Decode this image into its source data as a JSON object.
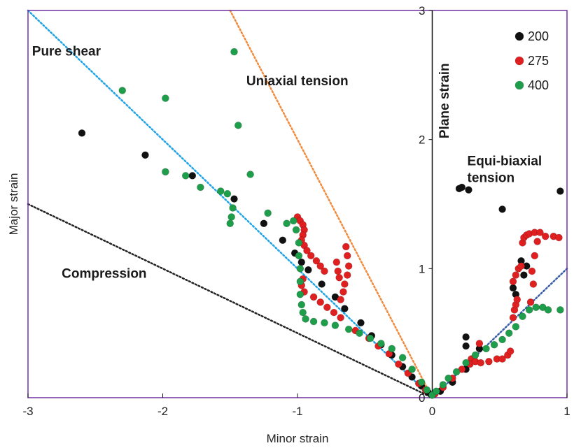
{
  "chart_data": {
    "type": "scatter",
    "title": "",
    "xlabel": "Minor strain",
    "ylabel": "Major strain",
    "xlim": [
      -3,
      1
    ],
    "ylim": [
      0,
      3
    ],
    "xticks": [
      -3,
      -2,
      -1,
      0,
      1
    ],
    "yticks": [
      0,
      1,
      2,
      3
    ],
    "tick_labels_x": [
      "-3",
      "-2",
      "-1",
      "0",
      "1"
    ],
    "tick_labels_y": [
      "0",
      "1",
      "2",
      "3"
    ],
    "grid": false,
    "legend_position": "top-right",
    "frame_color": "#7030a0",
    "reference_lines": [
      {
        "name": "Pure shear",
        "color": "#1fa3e8",
        "points": [
          [
            -3,
            3
          ],
          [
            0,
            0
          ]
        ]
      },
      {
        "name": "Uniaxial tension",
        "color": "#f28a3c",
        "points": [
          [
            -1.5,
            3
          ],
          [
            0,
            0
          ]
        ]
      },
      {
        "name": "Compression",
        "color": "#222222",
        "points": [
          [
            -3,
            1.5
          ],
          [
            0,
            0
          ]
        ]
      },
      {
        "name": "Equi-biaxial tension",
        "color": "#3a5fa8",
        "points": [
          [
            0,
            0
          ],
          [
            1,
            1
          ]
        ]
      }
    ],
    "annotations": [
      {
        "text": "Pure shear",
        "x": -2.97,
        "y": 2.65
      },
      {
        "text": "Uniaxial tension",
        "x": -1.38,
        "y": 2.42
      },
      {
        "text": "Compression",
        "x": -2.75,
        "y": 0.93
      },
      {
        "text": "Equi-biaxial",
        "x": 0.26,
        "y": 1.8
      },
      {
        "text": "tension",
        "x": 0.26,
        "y": 1.67
      }
    ],
    "vertical_annotation": {
      "text": "Plane strain",
      "x": 0.07,
      "y": 2.3
    },
    "series": [
      {
        "name": "200",
        "color": "#111111",
        "points": [
          [
            -2.6,
            2.05
          ],
          [
            -2.13,
            1.88
          ],
          [
            -1.78,
            1.72
          ],
          [
            -1.47,
            1.54
          ],
          [
            -1.25,
            1.35
          ],
          [
            -1.11,
            1.22
          ],
          [
            -1.02,
            1.12
          ],
          [
            -0.97,
            1.05
          ],
          [
            -0.92,
            0.99
          ],
          [
            -0.82,
            0.88
          ],
          [
            -0.72,
            0.78
          ],
          [
            -0.65,
            0.69
          ],
          [
            -0.53,
            0.58
          ],
          [
            -0.45,
            0.48
          ],
          [
            -0.38,
            0.41
          ],
          [
            -0.3,
            0.33
          ],
          [
            -0.22,
            0.24
          ],
          [
            -0.15,
            0.16
          ],
          [
            -0.08,
            0.09
          ],
          [
            -0.03,
            0.04
          ],
          [
            0,
            0.02
          ],
          [
            0.06,
            0.05
          ],
          [
            0.15,
            0.12
          ],
          [
            0.25,
            0.22
          ],
          [
            0.3,
            0.3
          ],
          [
            0.35,
            0.38
          ],
          [
            0.25,
            0.4
          ],
          [
            0.25,
            0.47
          ],
          [
            0.22,
            1.63
          ],
          [
            0.2,
            1.62
          ],
          [
            0.27,
            1.61
          ],
          [
            0.52,
            1.46
          ],
          [
            0.95,
            1.6
          ],
          [
            0.66,
            1.06
          ],
          [
            0.7,
            1.02
          ],
          [
            0.6,
            0.85
          ],
          [
            0.62,
            0.8
          ],
          [
            0.68,
            0.95
          ]
        ]
      },
      {
        "name": "275",
        "color": "#e02020",
        "points": [
          [
            -1.0,
            1.4
          ],
          [
            -0.98,
            1.37
          ],
          [
            -0.96,
            1.34
          ],
          [
            -0.95,
            1.3
          ],
          [
            -0.96,
            1.26
          ],
          [
            -0.97,
            1.22
          ],
          [
            -0.95,
            1.18
          ],
          [
            -0.93,
            1.14
          ],
          [
            -0.9,
            1.1
          ],
          [
            -0.86,
            1.06
          ],
          [
            -0.83,
            1.02
          ],
          [
            -0.8,
            0.98
          ],
          [
            -0.96,
            0.92
          ],
          [
            -0.97,
            0.87
          ],
          [
            -0.95,
            0.82
          ],
          [
            -0.88,
            0.78
          ],
          [
            -0.83,
            0.74
          ],
          [
            -0.78,
            0.7
          ],
          [
            -0.73,
            0.66
          ],
          [
            -0.68,
            0.62
          ],
          [
            -0.64,
            1.17
          ],
          [
            -0.63,
            1.1
          ],
          [
            -0.62,
            1.02
          ],
          [
            -0.63,
            0.95
          ],
          [
            -0.65,
            0.88
          ],
          [
            -0.66,
            0.82
          ],
          [
            -0.68,
            0.76
          ],
          [
            -0.71,
            1.05
          ],
          [
            -0.7,
            0.98
          ],
          [
            -0.69,
            0.93
          ],
          [
            -0.57,
            0.52
          ],
          [
            -0.47,
            0.46
          ],
          [
            -0.4,
            0.4
          ],
          [
            -0.32,
            0.34
          ],
          [
            -0.25,
            0.26
          ],
          [
            -0.18,
            0.19
          ],
          [
            -0.1,
            0.11
          ],
          [
            -0.05,
            0.06
          ],
          [
            0.02,
            0.03
          ],
          [
            0.08,
            0.08
          ],
          [
            0.15,
            0.15
          ],
          [
            0.22,
            0.22
          ],
          [
            0.29,
            0.3
          ],
          [
            0.35,
            0.42
          ],
          [
            0.28,
            0.26
          ],
          [
            0.32,
            0.28
          ],
          [
            0.36,
            0.27
          ],
          [
            0.42,
            0.28
          ],
          [
            0.48,
            0.3
          ],
          [
            0.52,
            0.3
          ],
          [
            0.56,
            0.33
          ],
          [
            0.58,
            0.36
          ],
          [
            0.6,
            0.62
          ],
          [
            0.61,
            0.68
          ],
          [
            0.62,
            0.72
          ],
          [
            0.63,
            0.76
          ],
          [
            0.6,
            0.9
          ],
          [
            0.62,
            0.95
          ],
          [
            0.64,
            1.0
          ],
          [
            0.66,
            1.02
          ],
          [
            0.67,
            1.2
          ],
          [
            0.68,
            1.24
          ],
          [
            0.7,
            1.26
          ],
          [
            0.72,
            1.27
          ],
          [
            0.76,
            1.28
          ],
          [
            0.8,
            1.28
          ],
          [
            0.84,
            1.25
          ],
          [
            0.9,
            1.25
          ],
          [
            0.94,
            1.24
          ],
          [
            0.78,
            1.21
          ],
          [
            0.76,
            1.1
          ],
          [
            0.74,
            0.98
          ],
          [
            0.75,
            0.88
          ],
          [
            0.73,
            0.74
          ]
        ]
      },
      {
        "name": "400",
        "color": "#1e9e4a",
        "points": [
          [
            -2.3,
            2.38
          ],
          [
            -1.98,
            2.32
          ],
          [
            -1.47,
            2.68
          ],
          [
            -1.44,
            2.11
          ],
          [
            -1.98,
            1.75
          ],
          [
            -1.83,
            1.72
          ],
          [
            -1.72,
            1.63
          ],
          [
            -1.57,
            1.6
          ],
          [
            -1.52,
            1.58
          ],
          [
            -1.48,
            1.47
          ],
          [
            -1.49,
            1.4
          ],
          [
            -1.5,
            1.35
          ],
          [
            -1.35,
            1.73
          ],
          [
            -1.22,
            1.43
          ],
          [
            -1.08,
            1.35
          ],
          [
            -1.03,
            1.37
          ],
          [
            -1.01,
            1.3
          ],
          [
            -0.99,
            1.2
          ],
          [
            -0.99,
            1.1
          ],
          [
            -0.98,
            1.0
          ],
          [
            -0.98,
            0.9
          ],
          [
            -0.98,
            0.8
          ],
          [
            -0.97,
            0.72
          ],
          [
            -0.96,
            0.66
          ],
          [
            -0.94,
            0.61
          ],
          [
            -0.88,
            0.59
          ],
          [
            -0.8,
            0.58
          ],
          [
            -0.72,
            0.56
          ],
          [
            -0.62,
            0.53
          ],
          [
            -0.54,
            0.5
          ],
          [
            -0.46,
            0.46
          ],
          [
            -0.38,
            0.42
          ],
          [
            -0.3,
            0.38
          ],
          [
            -0.22,
            0.31
          ],
          [
            -0.15,
            0.22
          ],
          [
            -0.08,
            0.12
          ],
          [
            -0.04,
            0.06
          ],
          [
            0,
            0.02
          ],
          [
            0.03,
            0.05
          ],
          [
            0.08,
            0.1
          ],
          [
            0.12,
            0.15
          ],
          [
            0.18,
            0.2
          ],
          [
            0.25,
            0.27
          ],
          [
            0.32,
            0.33
          ],
          [
            0.4,
            0.38
          ],
          [
            0.46,
            0.41
          ],
          [
            0.52,
            0.45
          ],
          [
            0.57,
            0.5
          ],
          [
            0.62,
            0.55
          ],
          [
            0.67,
            0.63
          ],
          [
            0.72,
            0.68
          ],
          [
            0.77,
            0.7
          ],
          [
            0.82,
            0.7
          ],
          [
            0.86,
            0.68
          ],
          [
            0.95,
            0.68
          ]
        ]
      }
    ]
  }
}
